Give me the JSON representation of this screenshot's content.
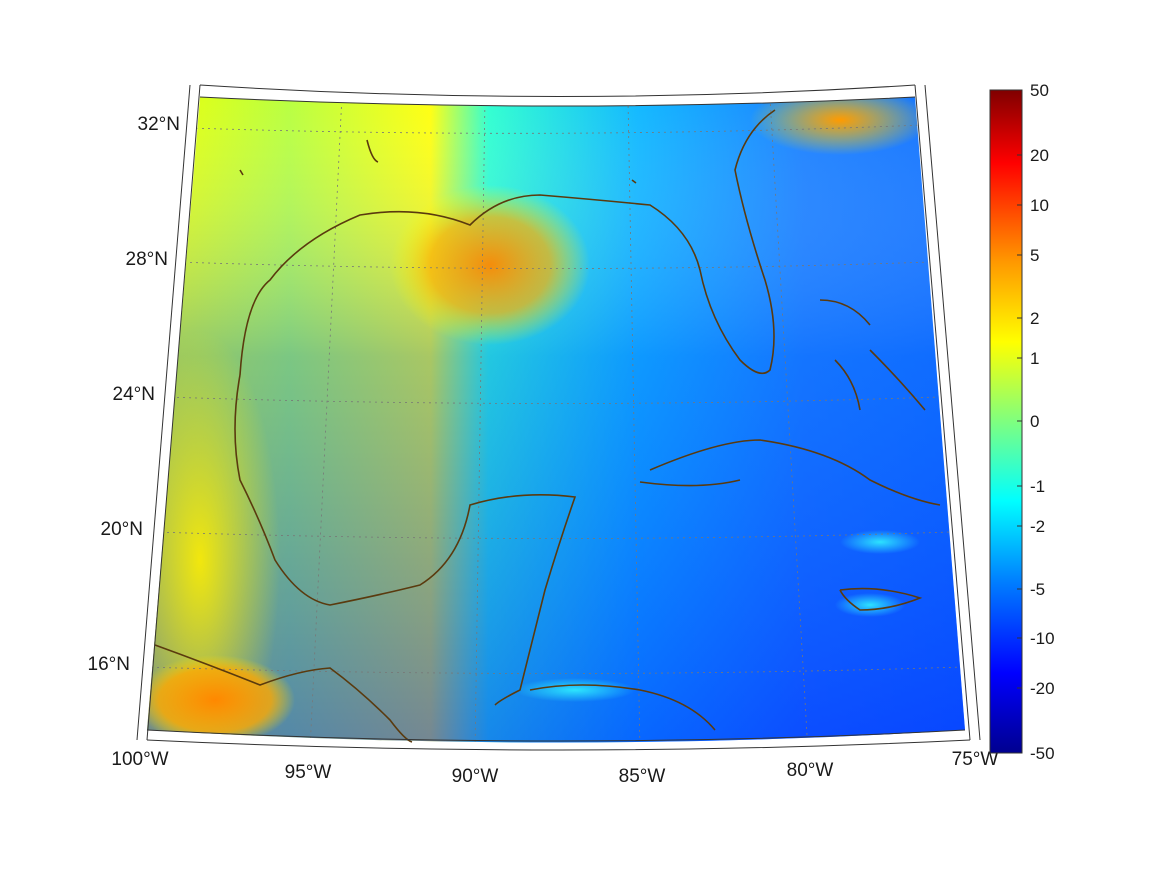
{
  "map": {
    "lat_labels": [
      "32°N",
      "28°N",
      "24°N",
      "20°N",
      "16°N"
    ],
    "lon_labels": [
      "100°W",
      "95°W",
      "90°W",
      "85°W",
      "80°W",
      "75°W"
    ],
    "lon_range": [
      -100,
      -75
    ],
    "lat_range": [
      14,
      33
    ],
    "coastline_color": "#5a3a0e",
    "grid": true
  },
  "colorbar": {
    "ticks": [
      "50",
      "20",
      "10",
      "5",
      "2",
      "1",
      "0",
      "-1",
      "-2",
      "-5",
      "-10",
      "-20",
      "-50"
    ],
    "colormap": "jet"
  }
}
